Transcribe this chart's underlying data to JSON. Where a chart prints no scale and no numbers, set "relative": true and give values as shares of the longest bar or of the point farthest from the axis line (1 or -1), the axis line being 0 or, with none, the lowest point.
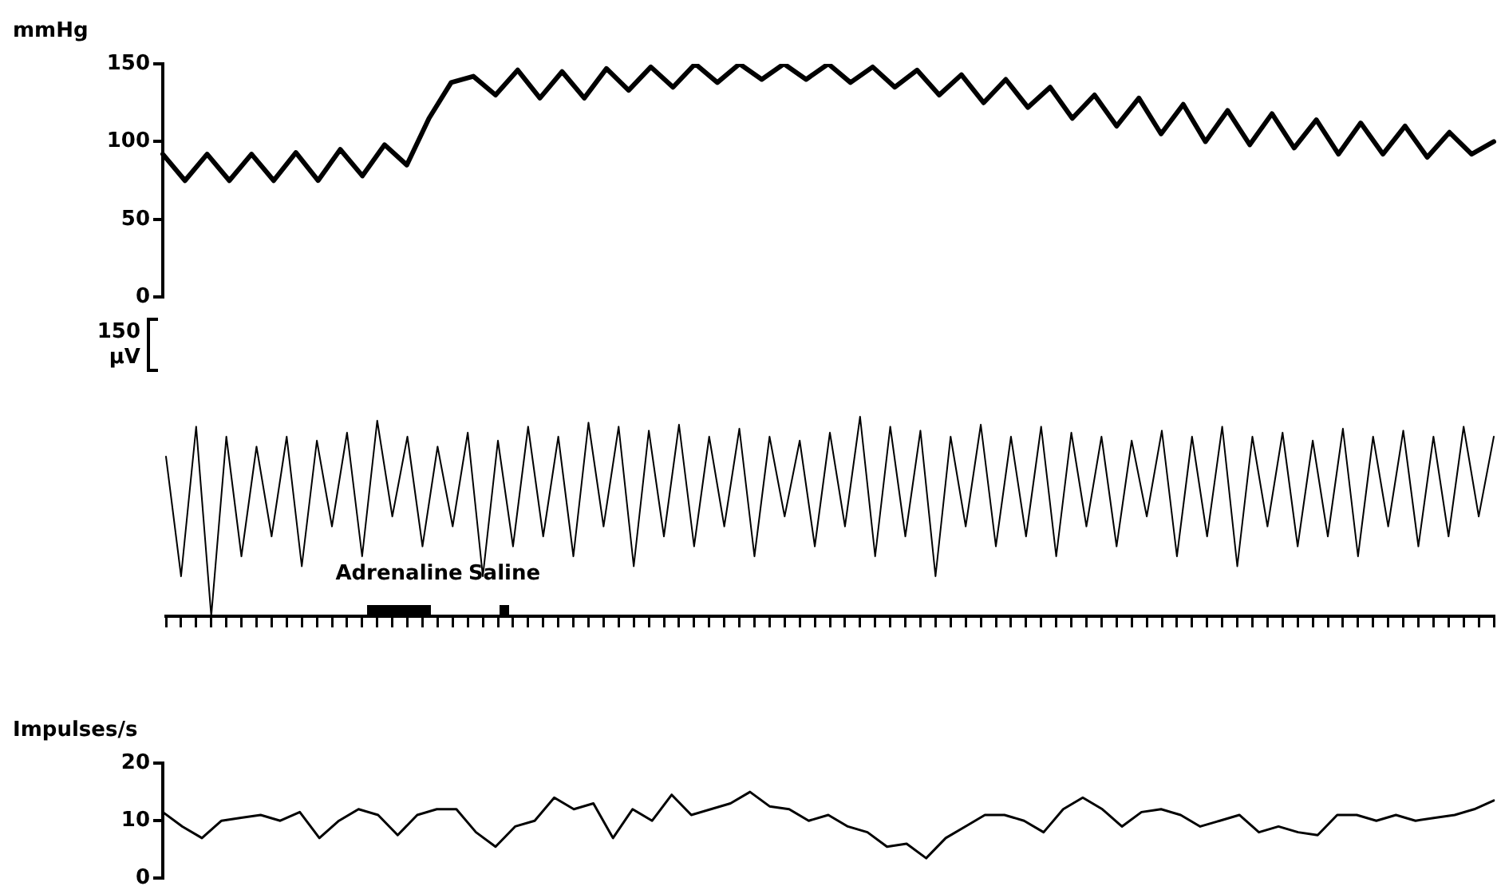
{
  "chart_data": [
    {
      "type": "line",
      "ylabel": "mmHg",
      "ylim": [
        0,
        150
      ],
      "yticks": [
        0,
        50,
        100,
        150
      ],
      "tick_labels": "y",
      "categories": [
        null,
        null,
        null,
        null,
        null,
        null,
        null,
        null,
        null,
        null,
        null,
        null,
        null,
        null,
        null,
        null,
        null,
        null,
        null,
        null,
        null,
        null,
        null,
        null,
        null,
        null,
        null,
        null,
        null,
        null,
        null,
        null,
        null,
        null,
        null,
        null,
        null,
        null,
        null,
        null,
        null,
        null,
        null,
        null,
        null,
        null,
        null,
        null,
        null,
        null,
        null,
        null,
        null,
        null,
        null,
        null,
        null,
        null,
        null,
        null,
        null
      ],
      "series": [
        {
          "color": "#000000",
          "values": [
            92,
            75,
            92,
            75,
            92,
            75,
            93,
            75,
            95,
            78,
            98,
            85,
            115,
            138,
            142,
            130,
            146,
            128,
            145,
            128,
            147,
            133,
            148,
            135,
            150,
            138,
            150,
            140,
            150,
            140,
            150,
            138,
            148,
            135,
            146,
            130,
            143,
            125,
            140,
            122,
            135,
            115,
            130,
            110,
            128,
            105,
            124,
            100,
            120,
            98,
            118,
            96,
            114,
            92,
            112,
            92,
            110,
            90,
            106,
            92,
            100
          ]
        }
      ]
    },
    {
      "type": "line",
      "relative": true,
      "tick_labels": false,
      "annotations": [
        "150 μV",
        "Adrenaline",
        "Saline"
      ],
      "categories": [
        null,
        null,
        null,
        null,
        null,
        null,
        null,
        null,
        null,
        null,
        null,
        null,
        null,
        null,
        null,
        null,
        null,
        null,
        null,
        null,
        null,
        null,
        null,
        null,
        null,
        null,
        null,
        null,
        null,
        null,
        null,
        null,
        null,
        null,
        null,
        null,
        null,
        null,
        null,
        null,
        null,
        null,
        null,
        null,
        null,
        null,
        null,
        null,
        null,
        null,
        null,
        null,
        null,
        null,
        null,
        null,
        null,
        null,
        null,
        null,
        null,
        null,
        null,
        null,
        null,
        null,
        null,
        null,
        null,
        null,
        null,
        null,
        null,
        null,
        null,
        null,
        null,
        null,
        null,
        null,
        null,
        null,
        null,
        null,
        null,
        null,
        null,
        null,
        null
      ],
      "series": [
        {
          "color": "#000000",
          "values": [
            0.8,
            0.2,
            0.95,
            0,
            0.9,
            0.3,
            0.85,
            0.4,
            0.9,
            0.25,
            0.88,
            0.45,
            0.92,
            0.3,
            0.98,
            0.5,
            0.9,
            0.35,
            0.85,
            0.45,
            0.92,
            0.2,
            0.88,
            0.35,
            0.95,
            0.4,
            0.9,
            0.3,
            0.97,
            0.45,
            0.95,
            0.25,
            0.93,
            0.4,
            0.96,
            0.35,
            0.9,
            0.45,
            0.94,
            0.3,
            0.9,
            0.5,
            0.88,
            0.35,
            0.92,
            0.45,
            1,
            0.3,
            0.95,
            0.4,
            0.93,
            0.2,
            0.9,
            0.45,
            0.96,
            0.35,
            0.9,
            0.4,
            0.95,
            0.3,
            0.92,
            0.45,
            0.9,
            0.35,
            0.88,
            0.5,
            0.93,
            0.3,
            0.9,
            0.4,
            0.95,
            0.25,
            0.9,
            0.45,
            0.92,
            0.35,
            0.88,
            0.4,
            0.94,
            0.3,
            0.9,
            0.45,
            0.93,
            0.35,
            0.9,
            0.4,
            0.95,
            0.5,
            0.9
          ]
        }
      ]
    },
    {
      "type": "line",
      "ylabel": "Impulses/s",
      "ylim": [
        0,
        20
      ],
      "yticks": [
        0,
        10,
        20
      ],
      "tick_labels": "y",
      "categories": [
        null,
        null,
        null,
        null,
        null,
        null,
        null,
        null,
        null,
        null,
        null,
        null,
        null,
        null,
        null,
        null,
        null,
        null,
        null,
        null,
        null,
        null,
        null,
        null,
        null,
        null,
        null,
        null,
        null,
        null,
        null,
        null,
        null,
        null,
        null,
        null,
        null,
        null,
        null,
        null,
        null,
        null,
        null,
        null,
        null,
        null,
        null,
        null,
        null,
        null,
        null,
        null,
        null,
        null,
        null,
        null,
        null,
        null,
        null,
        null,
        null,
        null,
        null,
        null,
        null,
        null,
        null,
        null,
        null
      ],
      "series": [
        {
          "color": "#000000",
          "values": [
            11.5,
            9,
            7,
            10,
            10.5,
            11,
            10,
            11.5,
            7,
            10,
            12,
            11,
            7.5,
            11,
            12,
            12,
            8,
            5.5,
            9,
            10,
            14,
            12,
            13,
            7,
            12,
            10,
            14.5,
            11,
            12,
            13,
            15,
            12.5,
            12,
            10,
            11,
            9,
            8,
            5.5,
            6,
            3.5,
            7,
            9,
            11,
            11,
            10,
            8,
            12,
            14,
            12,
            9,
            11.5,
            12,
            11,
            9,
            10,
            11,
            8,
            9,
            8,
            7.5,
            11,
            11,
            10,
            11,
            10,
            10.5,
            11,
            12,
            13.5
          ]
        }
      ]
    }
  ]
}
